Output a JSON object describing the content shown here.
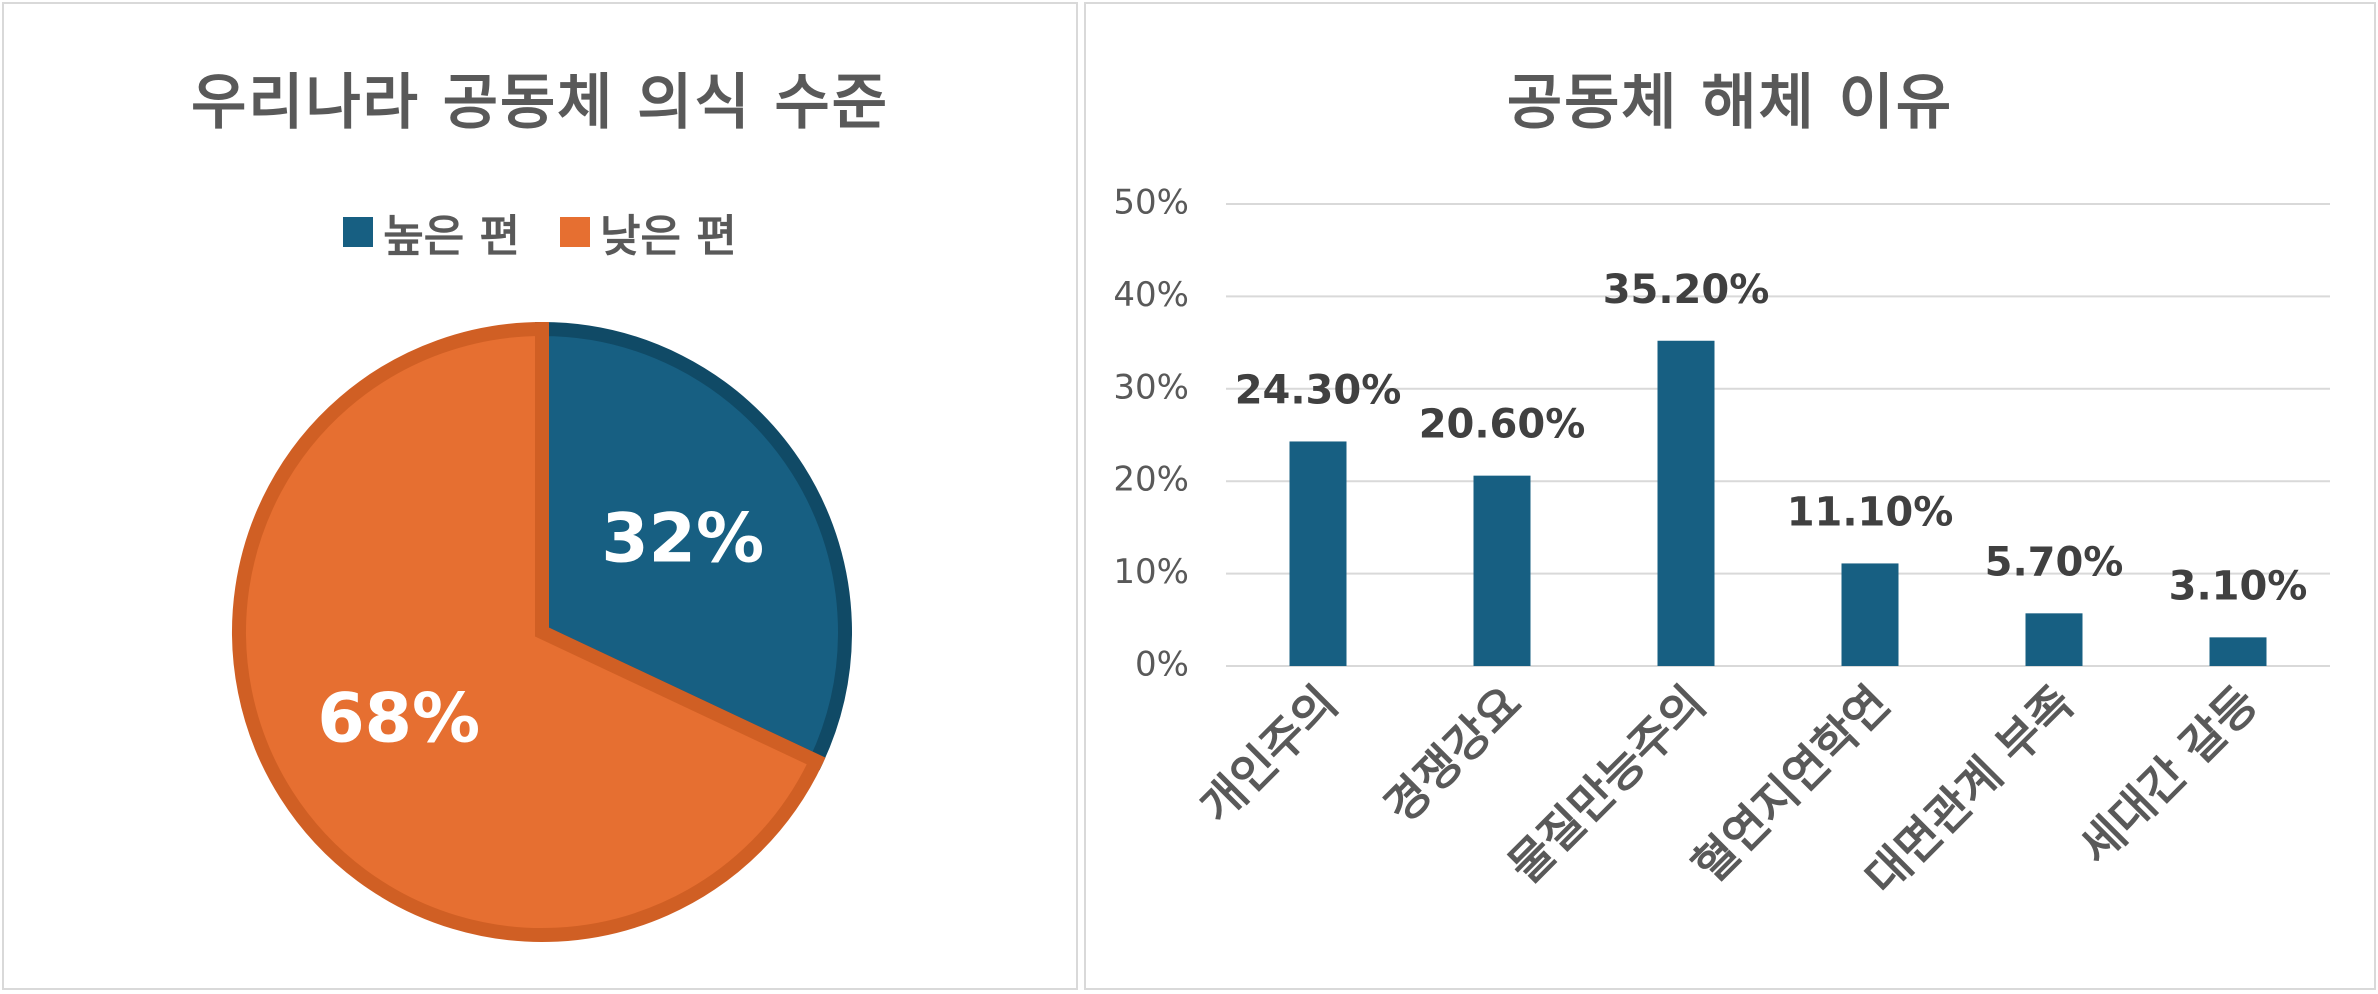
{
  "colors": {
    "high": "#175f82",
    "high_edge": "#104a66",
    "low": "#e66f31",
    "low_edge": "#d05f24",
    "grid": "#d9d9d9",
    "text": "#595959"
  },
  "chart_data": [
    {
      "type": "pie",
      "title": "우리나라 공동체 의식 수준",
      "legend": [
        "높은 편",
        "낮은 편"
      ],
      "legend_position": "top",
      "slices": [
        {
          "name": "높은 편",
          "value": 32,
          "label": "32%"
        },
        {
          "name": "낮은 편",
          "value": 68,
          "label": "68%"
        }
      ]
    },
    {
      "type": "bar",
      "title": "공동체 해체 이유",
      "categories": [
        "개인주의",
        "경쟁강요",
        "물질만능주의",
        "혈연지연학연",
        "대면관계 부족",
        "세대간 갈등"
      ],
      "values": [
        24.3,
        20.6,
        35.2,
        11.1,
        5.7,
        3.1
      ],
      "value_labels": [
        "24.30%",
        "20.60%",
        "35.20%",
        "11.10%",
        "5.70%",
        "3.10%"
      ],
      "ylim": [
        0,
        50
      ],
      "yticks": [
        "0%",
        "10%",
        "20%",
        "30%",
        "40%",
        "50%"
      ],
      "grid": true
    }
  ]
}
